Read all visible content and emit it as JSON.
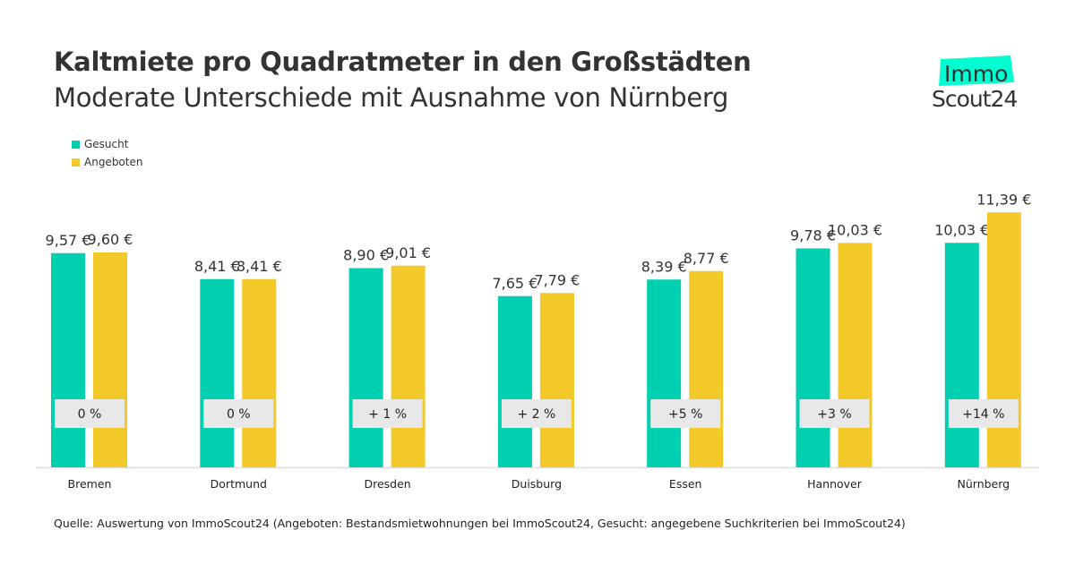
{
  "header": {
    "title": "Kaltmiete pro Quadratmeter in den Großstädten",
    "subtitle": "Moderate Unterschiede mit Ausnahme von Nürnberg"
  },
  "logo": {
    "line1": "Immo",
    "line2": "Scout24",
    "accent": "#00ffd0"
  },
  "source": "Quelle: Auswertung von ImmoScout24 (Angeboten: Bestandsmietwohnungen bei ImmoScout24, Gesucht: angegebene Suchkriterien bei ImmoScout24)",
  "chart_data": {
    "type": "bar",
    "title": "Kaltmiete pro Quadratmeter in den Großstädten",
    "subtitle": "Moderate Unterschiede mit Ausnahme von Nürnberg",
    "categories": [
      "Bremen",
      "Dortmund",
      "Dresden",
      "Duisburg",
      "Essen",
      "Hannover",
      "Nürnberg"
    ],
    "series": [
      {
        "name": "Gesucht",
        "color": "#00cfb0",
        "values": [
          9.57,
          8.41,
          8.9,
          7.65,
          8.39,
          9.78,
          10.03
        ],
        "labels": [
          "9,57 €",
          "8,41 €",
          "8,90 €",
          "7,65 €",
          "8,39 €",
          "9,78 €",
          "10,03 €"
        ]
      },
      {
        "name": "Angeboten",
        "color": "#f2c928",
        "values": [
          9.6,
          8.41,
          9.01,
          7.79,
          8.77,
          10.03,
          11.39
        ],
        "labels": [
          "9,60 €",
          "8,41 €",
          "9,01 €",
          "7,79 €",
          "8,77 €",
          "10,03 €",
          "11,39 €"
        ]
      }
    ],
    "differences": [
      "0 %",
      "0 %",
      "+ 1 %",
      "+ 2 %",
      "+5 %",
      "+3 %",
      "+14 %"
    ],
    "ylim": [
      0,
      12
    ],
    "grid": false,
    "legend": "top-left"
  }
}
